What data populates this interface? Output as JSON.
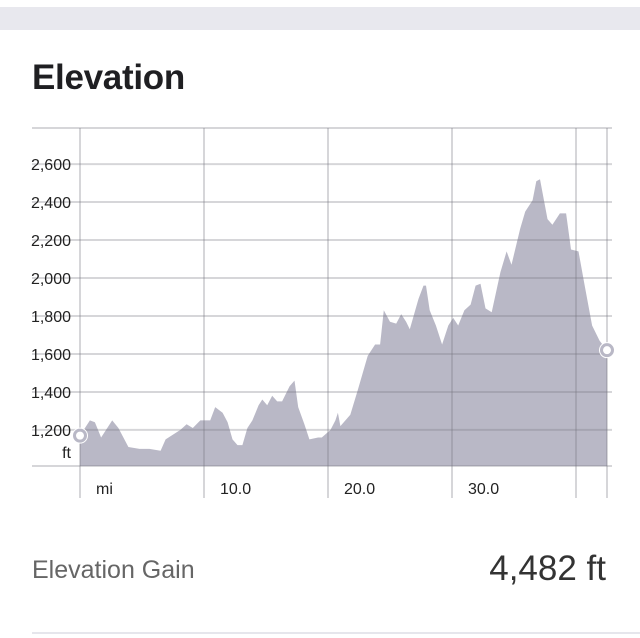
{
  "title": "Elevation",
  "summary": {
    "label": "Elevation Gain",
    "value": "4,482 ft"
  },
  "colors": {
    "fill": "#b9b8c6",
    "grid": "#d6d6d9",
    "marker": "#b9b8c6",
    "topbar": "#e8e8ee"
  },
  "chart_data": {
    "type": "area",
    "title": "",
    "xunit_label": "mi",
    "yunit_label": "ft",
    "xlim": [
      0,
      42.5
    ],
    "ylim": [
      1010,
      2790
    ],
    "grid": true,
    "x_ticks": [
      0,
      10,
      20,
      30,
      40
    ],
    "x_tick_labels": [
      "mi",
      "10.0",
      "20.0",
      "30.0",
      ""
    ],
    "y_ticks": [
      1200,
      1400,
      1600,
      1800,
      2000,
      2200,
      2400,
      2600
    ],
    "y_tick_labels": [
      "1,200",
      "1,400",
      "1,600",
      "1,800",
      "2,000",
      "2,200",
      "2,400",
      "2,600"
    ],
    "markers": [
      "start",
      "end"
    ],
    "x": [
      0.0,
      0.8,
      1.2,
      1.7,
      2.6,
      3.1,
      3.9,
      4.8,
      5.6,
      6.5,
      6.9,
      8.1,
      8.6,
      9.1,
      9.7,
      10.5,
      10.9,
      11.5,
      11.9,
      12.3,
      12.7,
      13.1,
      13.5,
      13.9,
      14.4,
      14.7,
      15.1,
      15.5,
      15.9,
      16.3,
      16.9,
      17.3,
      17.6,
      18.1,
      18.5,
      19.2,
      19.5,
      20.2,
      20.6,
      20.8,
      21.0,
      21.8,
      22.4,
      23.2,
      23.8,
      24.2,
      24.5,
      25.0,
      25.5,
      25.9,
      26.3,
      26.6,
      27.3,
      27.7,
      27.9,
      28.2,
      28.7,
      29.2,
      29.7,
      30.1,
      30.5,
      31.0,
      31.5,
      31.9,
      32.3,
      32.7,
      33.2,
      33.9,
      34.4,
      34.8,
      35.5,
      35.9,
      36.5,
      36.8,
      37.1,
      37.7,
      38.1,
      38.7,
      39.2,
      39.6,
      40.2,
      40.7,
      41.3,
      41.9,
      42.5
    ],
    "y": [
      1170,
      1250,
      1240,
      1160,
      1250,
      1210,
      1110,
      1100,
      1100,
      1090,
      1150,
      1200,
      1230,
      1210,
      1250,
      1250,
      1320,
      1290,
      1240,
      1150,
      1120,
      1120,
      1210,
      1250,
      1330,
      1360,
      1330,
      1380,
      1350,
      1350,
      1430,
      1460,
      1320,
      1230,
      1150,
      1160,
      1160,
      1200,
      1250,
      1290,
      1220,
      1280,
      1410,
      1590,
      1650,
      1650,
      1830,
      1770,
      1760,
      1810,
      1770,
      1730,
      1890,
      1960,
      1960,
      1830,
      1750,
      1650,
      1750,
      1790,
      1750,
      1830,
      1860,
      1960,
      1970,
      1840,
      1820,
      2030,
      2140,
      2070,
      2260,
      2350,
      2410,
      2510,
      2520,
      2310,
      2280,
      2340,
      2340,
      2150,
      2140,
      1960,
      1750,
      1670,
      1620
    ]
  }
}
